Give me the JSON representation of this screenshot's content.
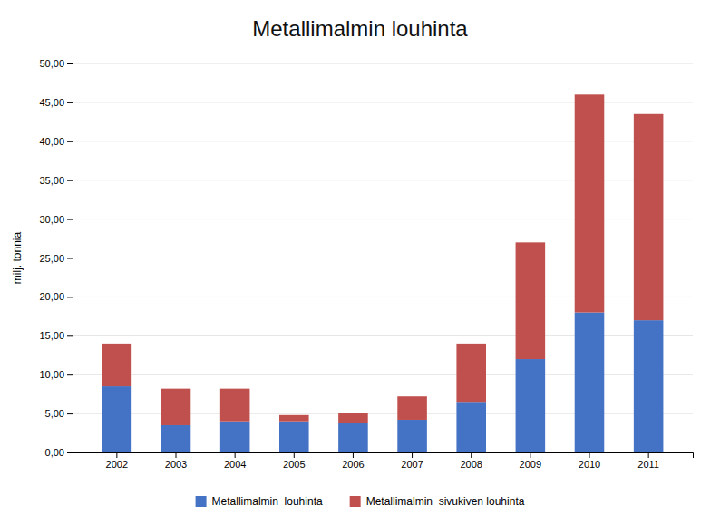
{
  "chart_data": {
    "type": "bar",
    "stacked": true,
    "title": "Metallimalmin louhinta",
    "ylabel": "milj. tonnia",
    "categories": [
      "2002",
      "2003",
      "2004",
      "2005",
      "2006",
      "2007",
      "2008",
      "2009",
      "2010",
      "2011"
    ],
    "series": [
      {
        "name": "Metallimalmin  louhinta",
        "color": "#4472C4",
        "values": [
          8.5,
          3.5,
          4.0,
          4.0,
          3.8,
          4.2,
          6.5,
          12.0,
          18.0,
          17.0
        ]
      },
      {
        "name": "Metallimalmin  sivukiven louhinta",
        "color": "#C0504D",
        "values": [
          5.5,
          4.7,
          4.2,
          0.8,
          1.3,
          3.0,
          7.5,
          15.0,
          28.0,
          26.5
        ]
      }
    ],
    "ylim": [
      0,
      50
    ],
    "yticks": [
      {
        "value": 0.0,
        "label": "0,00"
      },
      {
        "value": 5.0,
        "label": "5,00"
      },
      {
        "value": 10.0,
        "label": "10,00"
      },
      {
        "value": 15.0,
        "label": "15,00"
      },
      {
        "value": 20.0,
        "label": "20,00"
      },
      {
        "value": 25.0,
        "label": "25,00"
      },
      {
        "value": 30.0,
        "label": "30,00"
      },
      {
        "value": 35.0,
        "label": "35,00"
      },
      {
        "value": 40.0,
        "label": "40,00"
      },
      {
        "value": 45.0,
        "label": "45,00"
      },
      {
        "value": 50.0,
        "label": "50,00"
      }
    ],
    "grid": true,
    "legend": "bottom"
  }
}
